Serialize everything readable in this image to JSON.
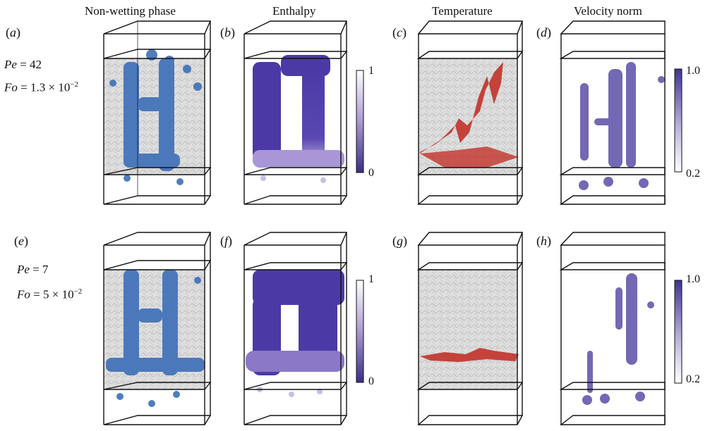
{
  "column_titles": {
    "col1": "Non-wetting phase",
    "col2": "Enthalpy",
    "col3": "Temperature",
    "col4": "Velocity norm"
  },
  "panel_labels": {
    "a": "a",
    "b": "b",
    "c": "c",
    "d": "d",
    "e": "e",
    "f": "f",
    "g": "g",
    "h": "h"
  },
  "rows": [
    {
      "pe_symbol": "Pe",
      "pe_value": "= 42",
      "fo_symbol": "Fo",
      "fo_value": "= 1.3 × 10",
      "fo_exponent": "−2"
    },
    {
      "pe_symbol": "Pe",
      "pe_value": "= 7",
      "fo_symbol": "Fo",
      "fo_value": "= 5 × 10",
      "fo_exponent": "−2"
    }
  ],
  "colorbars": {
    "enthalpy": {
      "max_label": "1",
      "min_label": "0"
    },
    "velocity": {
      "max_label": "1.0",
      "min_label": "0.2"
    }
  },
  "colors": {
    "nonwetting_blue": "#3d6fb8",
    "enthalpy_purple": "#4a3a9c",
    "temperature_red": "#c0281e",
    "velocity_purple": "#5b4ea8",
    "porous_grey": "#c9c9c9",
    "frame_black": "#111111"
  }
}
